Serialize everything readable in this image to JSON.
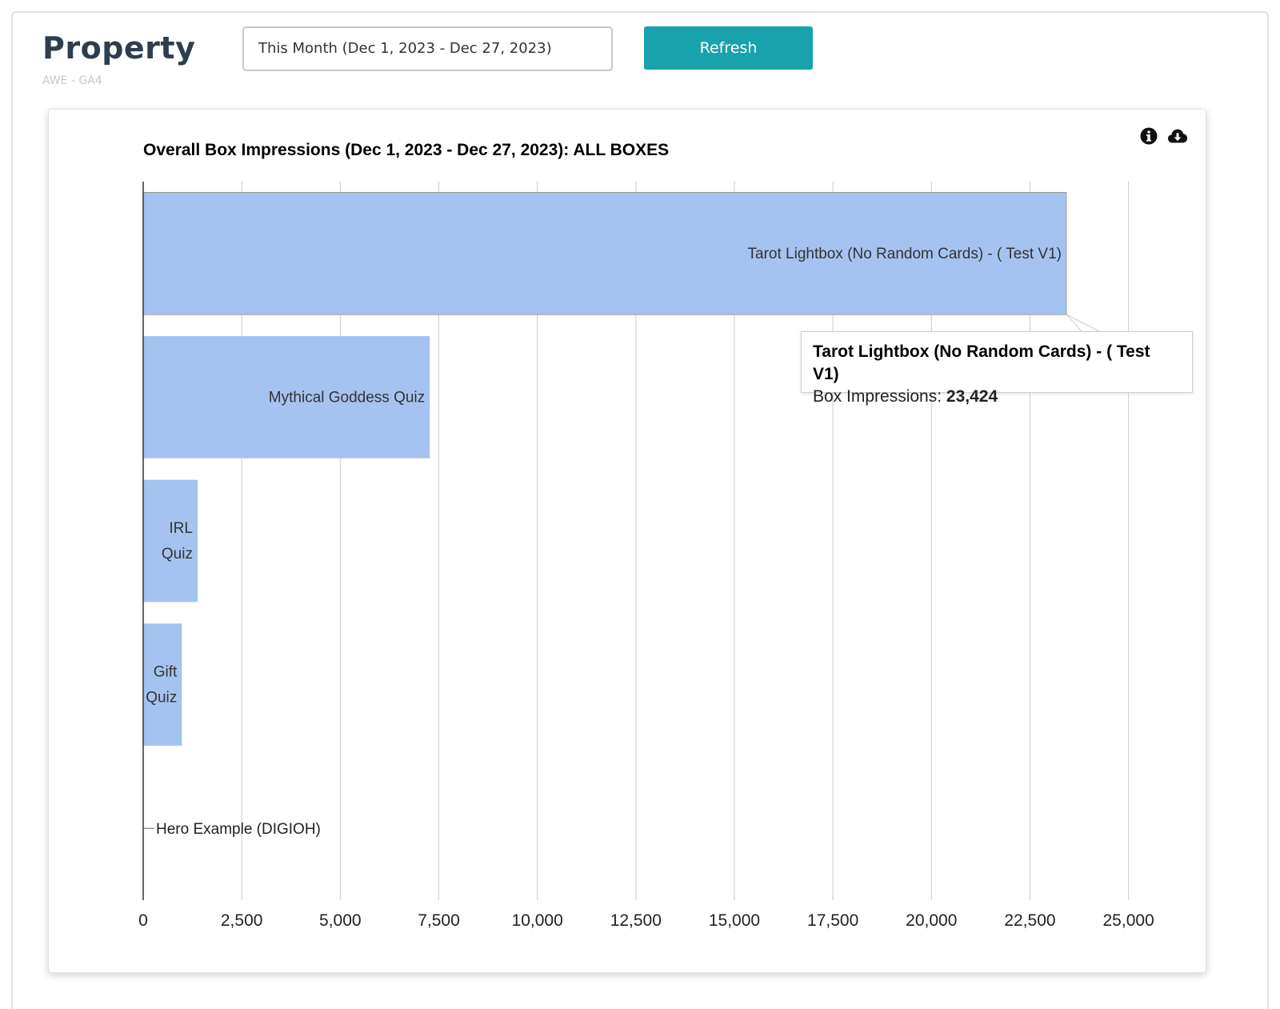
{
  "header": {
    "title": "Property",
    "subtitle": "AWE - GA4",
    "date_range_value": "This Month (Dec 1, 2023 - Dec 27, 2023)",
    "refresh_label": "Refresh"
  },
  "card": {
    "icons": [
      "info-icon",
      "cloud-download-icon"
    ]
  },
  "colors": {
    "accent": "#17a2ac",
    "bar": "#a4c3f1",
    "grid": "#cccccc"
  },
  "tooltip": {
    "title": "Tarot Lightbox (No Random Cards) - ( Test V1)",
    "metric_label": "Box Impressions:",
    "metric_value": "23,424"
  },
  "chart_data": {
    "type": "bar",
    "orientation": "horizontal",
    "title": "Overall Box Impressions (Dec 1, 2023 - Dec 27, 2023): ALL BOXES",
    "xlabel": "",
    "ylabel": "",
    "categories": [
      "Tarot Lightbox (No Random Cards) - ( Test V1)",
      "Mythical Goddess Quiz",
      "IRL Quiz",
      "Gift Quiz",
      "Hero Example (DIGIOH)"
    ],
    "series": [
      {
        "values": [
          23424,
          7270,
          1380,
          980,
          0
        ]
      }
    ],
    "xlim": [
      0,
      26875
    ],
    "xticks": [
      0,
      2500,
      5000,
      7500,
      10000,
      12500,
      15000,
      17500,
      20000,
      22500,
      25000
    ],
    "xtick_labels": [
      "0",
      "2,500",
      "5,000",
      "7,500",
      "10,000",
      "12,500",
      "15,000",
      "17,500",
      "20,000",
      "22,500",
      "25,000"
    ],
    "grid": true,
    "legend": "none",
    "bar_label_lines": [
      [
        "Tarot Lightbox (No Random Cards) - ( Test V1)"
      ],
      [
        "Mythical Goddess Quiz"
      ],
      [
        "IRL",
        "Quiz"
      ],
      [
        "Gift",
        "Quiz"
      ],
      [
        "Hero Example (DIGIOH)"
      ]
    ]
  }
}
